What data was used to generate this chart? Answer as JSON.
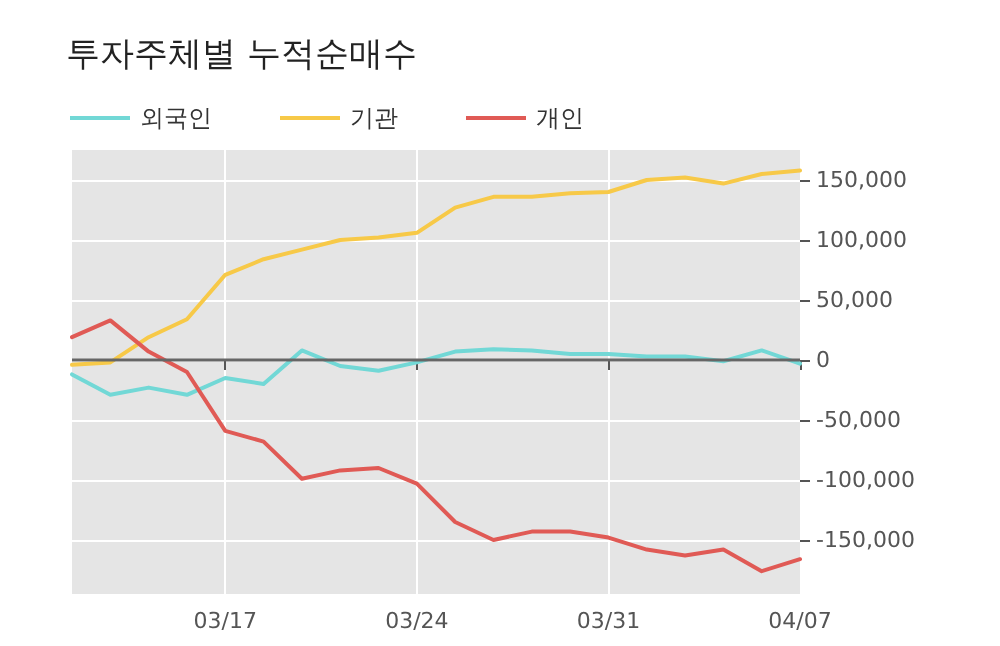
{
  "chart_data": {
    "type": "line",
    "title": "투자주체별 누적순매수",
    "categories": [
      null,
      null,
      null,
      null,
      "03/17",
      null,
      null,
      null,
      null,
      "03/24",
      null,
      null,
      null,
      null,
      "03/31",
      null,
      null,
      null,
      null,
      "04/07"
    ],
    "series": [
      {
        "name": "외국인",
        "color": "#72d8d6",
        "values": [
          -12000,
          -29000,
          -23000,
          -29000,
          -15000,
          -20000,
          8000,
          -5000,
          -9000,
          -2000,
          7000,
          9000,
          8000,
          5000,
          5000,
          3000,
          3000,
          -1000,
          8000,
          -3000
        ]
      },
      {
        "name": "기관",
        "color": "#f7c948",
        "values": [
          -4000,
          -2000,
          19000,
          34000,
          71000,
          84000,
          92000,
          100000,
          102000,
          106000,
          127000,
          136000,
          136000,
          139000,
          140000,
          150000,
          152000,
          147000,
          155000,
          158000
        ]
      },
      {
        "name": "개인",
        "color": "#e05a55",
        "values": [
          19000,
          33000,
          7000,
          -10000,
          -59000,
          -68000,
          -99000,
          -92000,
          -90000,
          -103000,
          -135000,
          -150000,
          -143000,
          -143000,
          -148000,
          -158000,
          -163000,
          -158000,
          -176000,
          -166000
        ]
      }
    ],
    "ylim": [
      -195000,
      175000
    ],
    "yticks": [
      {
        "value": -150000,
        "label": "-150,000"
      },
      {
        "value": -100000,
        "label": "-100,000"
      },
      {
        "value": -50000,
        "label": "-50,000"
      },
      0,
      {
        "value": 50000,
        "label": "50,000"
      },
      {
        "value": 100000,
        "label": "100,000"
      },
      {
        "value": 150000,
        "label": "150,000"
      }
    ],
    "ref_lines": [
      {
        "axis": "y",
        "value": 0,
        "color": "#666666"
      }
    ],
    "grid": true,
    "legend": "top left",
    "marker": "none",
    "line_style": "solid"
  }
}
